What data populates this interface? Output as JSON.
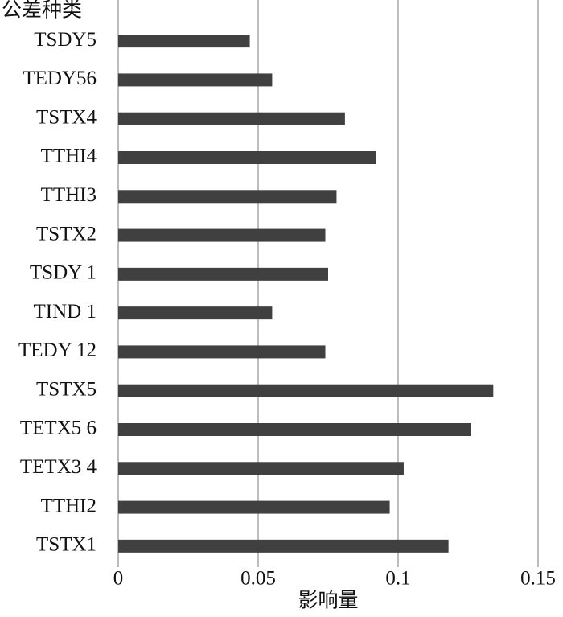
{
  "chart_data": {
    "type": "barh",
    "y_label": "公差种类",
    "x_label": "影响量",
    "categories": [
      "TSDY5",
      "TEDY56",
      "TSTX4",
      "TTHI4",
      "TTHI3",
      "TSTX2",
      "TSDY 1",
      "TIND 1",
      "TEDY 12",
      "TSTX5",
      "TETX5 6",
      "TETX3 4",
      "TTHI2",
      "TSTX1"
    ],
    "values": [
      0.047,
      0.055,
      0.081,
      0.092,
      0.078,
      0.074,
      0.075,
      0.055,
      0.074,
      0.134,
      0.126,
      0.102,
      0.097,
      0.118
    ],
    "color": "#404040",
    "xlim": [
      0,
      0.15
    ],
    "xticks": [
      0,
      0.05,
      0.1,
      0.15
    ],
    "grid": true
  }
}
